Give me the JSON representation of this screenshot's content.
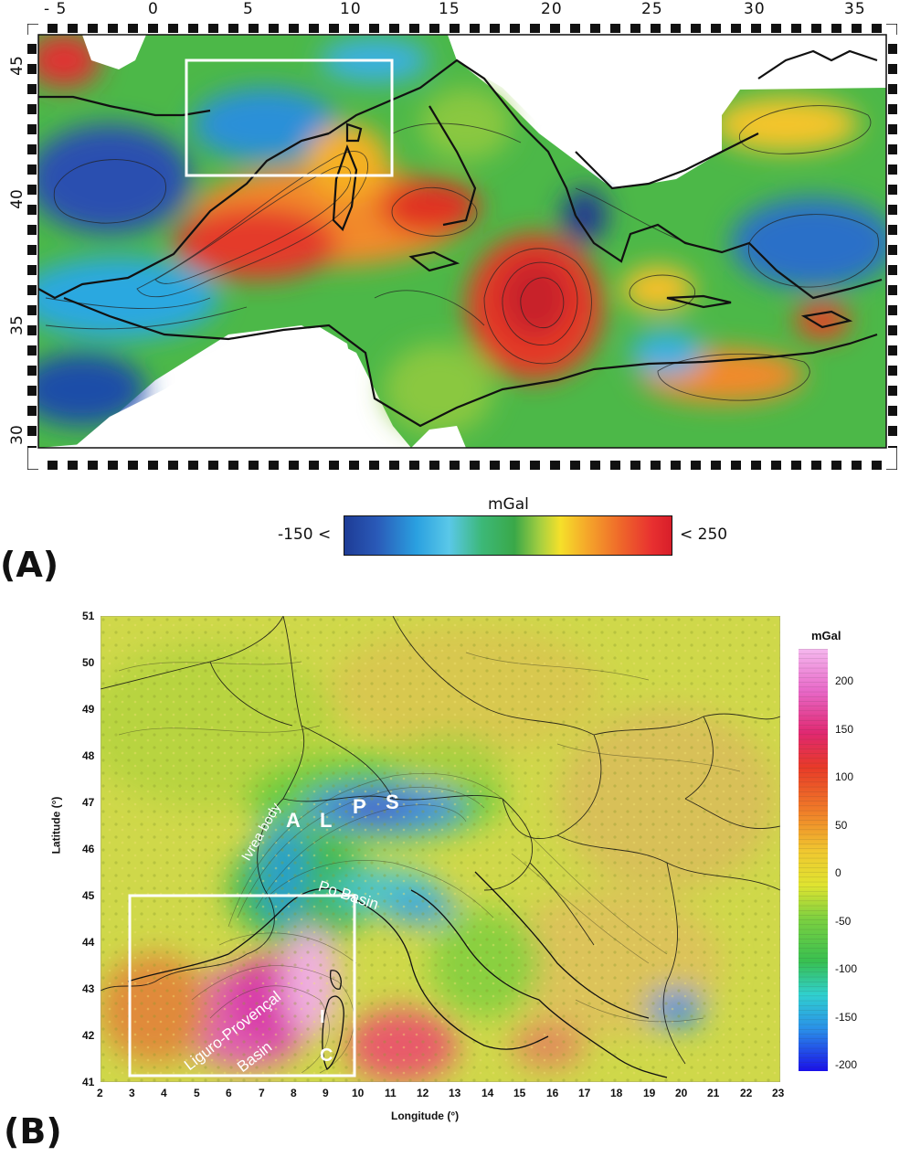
{
  "panel_a": {
    "label": "(A)",
    "lon_ticks": [
      "- 5",
      "0",
      "5",
      "10",
      "15",
      "20",
      "25",
      "30",
      "35"
    ],
    "lat_ticks": [
      "45",
      "40",
      "35",
      "30"
    ],
    "colorbar": {
      "title": "mGal",
      "min_label": "-150 <",
      "max_label": "< 250"
    }
  },
  "panel_b": {
    "label": "(B)",
    "lon_ticks": [
      "2",
      "3",
      "4",
      "5",
      "6",
      "7",
      "8",
      "9",
      "10",
      "11",
      "12",
      "13",
      "14",
      "15",
      "16",
      "17",
      "18",
      "19",
      "20",
      "21",
      "22",
      "23"
    ],
    "lat_ticks": [
      "51",
      "50",
      "49",
      "48",
      "47",
      "46",
      "45",
      "44",
      "43",
      "42",
      "41"
    ],
    "xlabel": "Longitude (°)",
    "ylabel": "Latitude (°)",
    "colorbar": {
      "title": "mGal",
      "ticks": [
        "200",
        "150",
        "100",
        "50",
        "0",
        "-50",
        "-100",
        "-150",
        "-200"
      ]
    },
    "labels": {
      "alps": [
        "A",
        "L",
        "P",
        "S"
      ],
      "ivrea": "Ivrea body",
      "po": "Po Basin",
      "liguro1": "Liguro-Provençal",
      "liguro2": "Basin",
      "ic1": "I",
      "ic2": "C"
    }
  }
}
